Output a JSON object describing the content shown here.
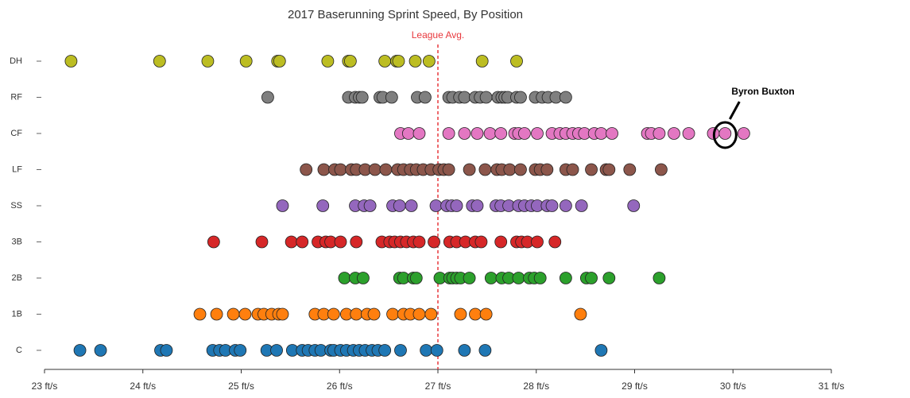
{
  "chart_data": {
    "type": "strip",
    "title": "2017 Baserunning Sprint Speed, By Position",
    "categories": [
      "C",
      "1B",
      "2B",
      "3B",
      "SS",
      "LF",
      "CF",
      "RF",
      "DH"
    ],
    "colors": [
      "#1f77b4",
      "#ff7f0e",
      "#2ca02c",
      "#d62728",
      "#9467bd",
      "#8c564b",
      "#e377c2",
      "#7f7f7f",
      "#bcbd22"
    ],
    "values": [
      [
        23.36,
        23.57,
        24.18,
        24.24,
        24.71,
        24.78,
        24.84,
        24.94,
        24.99,
        25.26,
        25.36,
        25.52,
        25.62,
        25.68,
        25.75,
        25.81,
        25.91,
        25.94,
        26.01,
        26.07,
        26.14,
        26.2,
        26.26,
        26.33,
        26.39,
        26.46,
        26.62,
        26.88,
        26.99,
        27.27,
        27.48,
        28.66
      ],
      [
        24.58,
        24.75,
        24.92,
        25.04,
        25.17,
        25.23,
        25.31,
        25.38,
        25.42,
        25.75,
        25.84,
        25.94,
        26.07,
        26.17,
        26.28,
        26.35,
        26.54,
        26.65,
        26.72,
        26.81,
        26.93,
        27.23,
        27.38,
        27.49,
        28.45
      ],
      [
        26.05,
        26.16,
        26.24,
        26.61,
        26.65,
        26.75,
        26.78,
        27.02,
        27.12,
        27.15,
        27.19,
        27.23,
        27.32,
        27.54,
        27.65,
        27.72,
        27.82,
        27.93,
        27.98,
        28.04,
        28.3,
        28.51,
        28.56,
        28.74,
        29.25
      ],
      [
        24.72,
        25.21,
        25.51,
        25.62,
        25.78,
        25.86,
        25.91,
        26.01,
        26.17,
        26.43,
        26.51,
        26.56,
        26.62,
        26.68,
        26.75,
        26.81,
        26.96,
        27.12,
        27.19,
        27.28,
        27.38,
        27.44,
        27.64,
        27.8,
        27.85,
        27.91,
        28.01,
        28.19
      ],
      [
        25.42,
        25.83,
        26.16,
        26.25,
        26.31,
        26.54,
        26.61,
        26.73,
        26.98,
        27.09,
        27.14,
        27.19,
        27.35,
        27.4,
        27.59,
        27.64,
        27.72,
        27.82,
        27.88,
        27.95,
        28.01,
        28.11,
        28.16,
        28.3,
        28.46,
        28.99
      ],
      [
        25.66,
        25.84,
        25.95,
        26.01,
        26.12,
        26.17,
        26.26,
        26.36,
        26.47,
        26.59,
        26.65,
        26.72,
        26.78,
        26.85,
        26.93,
        27.01,
        27.06,
        27.11,
        27.32,
        27.48,
        27.6,
        27.65,
        27.73,
        27.84,
        27.99,
        28.04,
        28.11,
        28.3,
        28.37,
        28.56,
        28.71,
        28.74,
        28.95,
        29.27
      ],
      [
        26.62,
        26.7,
        26.81,
        27.11,
        27.27,
        27.4,
        27.53,
        27.64,
        27.78,
        27.82,
        27.88,
        28.01,
        28.16,
        28.24,
        28.3,
        28.37,
        28.43,
        28.49,
        28.59,
        28.66,
        28.77,
        29.13,
        29.17,
        29.25,
        29.4,
        29.55,
        29.8,
        29.92,
        30.11
      ],
      [
        25.27,
        26.09,
        26.16,
        26.2,
        26.23,
        26.41,
        26.44,
        26.53,
        26.79,
        26.87,
        27.11,
        27.15,
        27.22,
        27.27,
        27.38,
        27.43,
        27.49,
        27.61,
        27.65,
        27.68,
        27.71,
        27.8,
        27.84,
        27.99,
        28.06,
        28.12,
        28.2,
        28.3
      ],
      [
        23.27,
        24.17,
        24.66,
        25.05,
        25.37,
        25.39,
        25.88,
        26.09,
        26.11,
        26.46,
        26.58,
        26.6,
        26.77,
        26.91,
        27.45,
        27.8
      ]
    ],
    "xlim": [
      23,
      31
    ],
    "xticks": [
      {
        "value": 23,
        "label": "23 ft/s"
      },
      {
        "value": 24,
        "label": "24 ft/s"
      },
      {
        "value": 25,
        "label": "25 ft/s"
      },
      {
        "value": 26,
        "label": "26 ft/s"
      },
      {
        "value": 27,
        "label": "27 ft/s"
      },
      {
        "value": 28,
        "label": "28 ft/s"
      },
      {
        "value": 29,
        "label": "29 ft/s"
      },
      {
        "value": 30,
        "label": "30 ft/s"
      },
      {
        "value": 31,
        "label": "31 ft/s"
      }
    ],
    "reference_line": {
      "value": 27,
      "label": "League Avg.",
      "color": "#e8383d"
    },
    "annotation": {
      "text": "Byron Buxton",
      "x": 29.92
    }
  }
}
